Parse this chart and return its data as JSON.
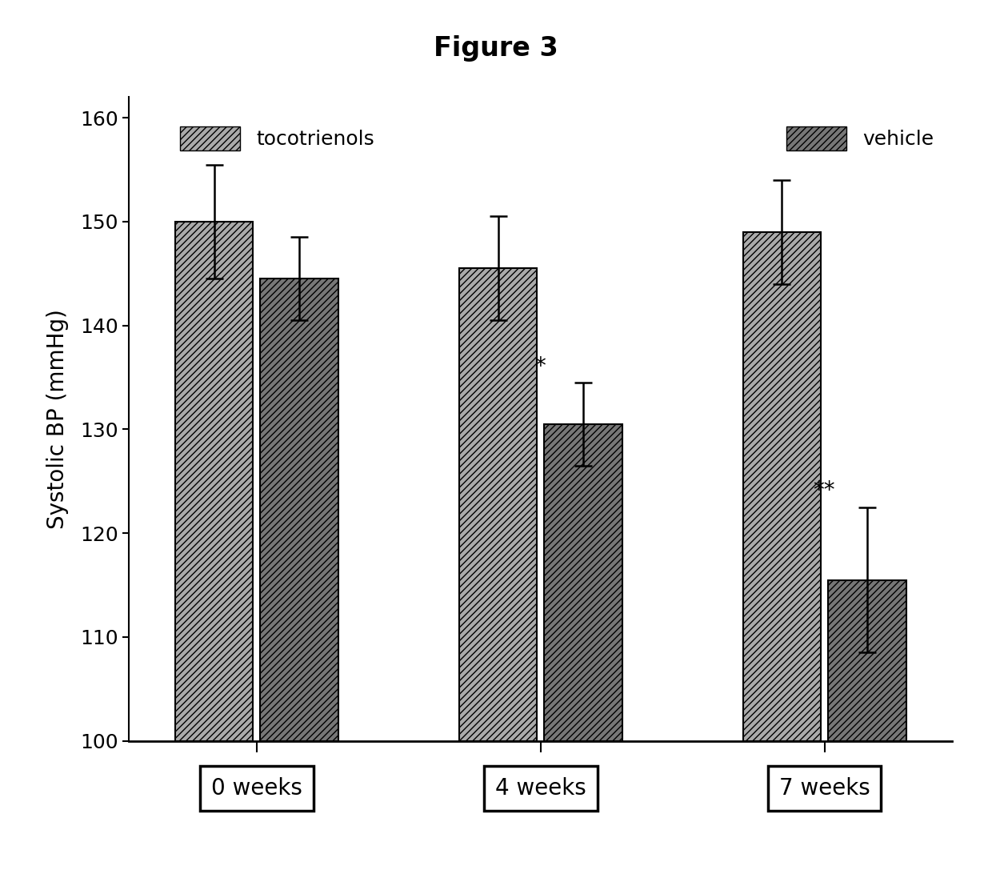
{
  "title": "Figure 3",
  "ylabel": "Systolic BP (mmHg)",
  "groups": [
    "0 weeks",
    "4 weeks",
    "7 weeks"
  ],
  "tocotrienols_values": [
    150,
    145.5,
    149
  ],
  "vehicle_values": [
    144.5,
    130.5,
    115.5
  ],
  "tocotrienols_errors": [
    5.5,
    5,
    5
  ],
  "vehicle_errors": [
    4,
    4,
    7
  ],
  "ylim": [
    100,
    162
  ],
  "yticks": [
    100,
    110,
    120,
    130,
    140,
    150,
    160
  ],
  "bar_width": 0.55,
  "group_centers": [
    1.0,
    3.0,
    5.0
  ],
  "bar_gap": 0.05,
  "hatch_toco": "////",
  "hatch_veh": "////",
  "color_toco": "#aaaaaa",
  "color_veh": "#777777",
  "edgecolor": "#000000",
  "significance_4wk": "*",
  "significance_7wk": "**",
  "background_color": "#ffffff",
  "title_fontsize": 24,
  "label_fontsize": 20,
  "tick_fontsize": 18,
  "legend_fontsize": 18,
  "annot_fontsize": 20,
  "xlabel_fontsize": 20
}
